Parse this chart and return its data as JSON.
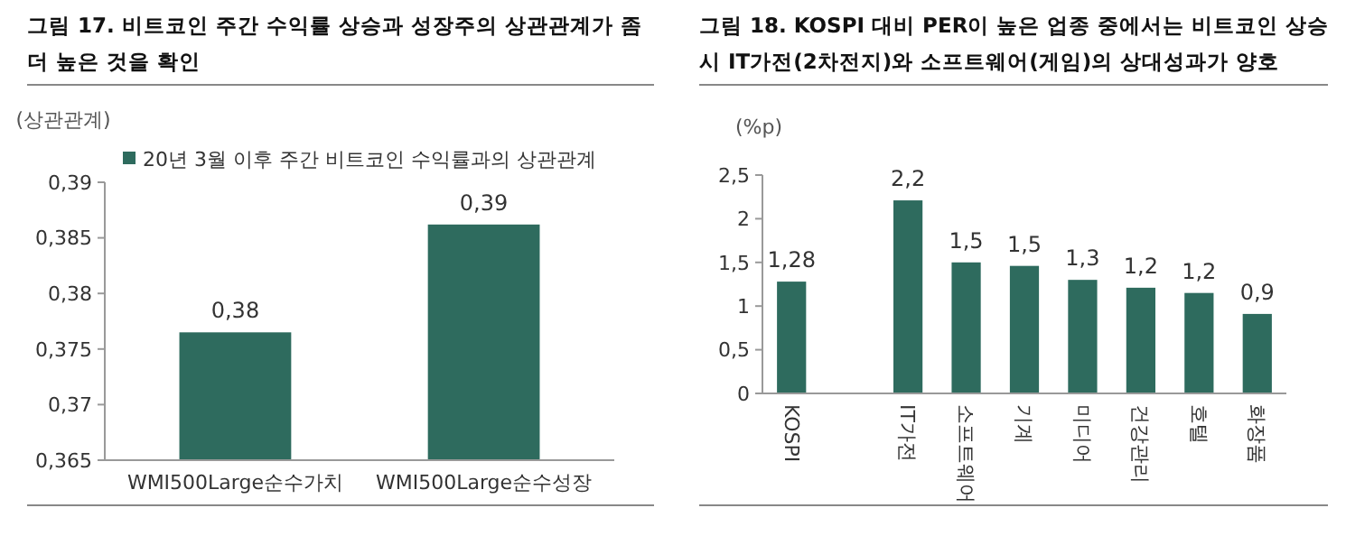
{
  "chart_data": [
    {
      "type": "bar",
      "title": "그림 17. 비트코인 주간 수익률 상승과 성장주의 상관관계가 좀 더 높은 것을 확인",
      "ylabel": "(상관관계)",
      "categories": [
        "WMI500Large순수가치",
        "WMI500Large순수성장"
      ],
      "series": [
        {
          "name": "20년 3월 이후 주간 비트코인 수익률과의 상관관계",
          "color": "#2e6b5e",
          "values": [
            0.3765,
            0.3862
          ],
          "value_labels": [
            "0,38",
            "0,39"
          ]
        }
      ],
      "ylim": [
        0.365,
        0.39
      ],
      "yticks": [
        {
          "value": 0.365,
          "label": "0,365"
        },
        {
          "value": 0.37,
          "label": "0,37"
        },
        {
          "value": 0.375,
          "label": "0,375"
        },
        {
          "value": 0.38,
          "label": "0,38"
        },
        {
          "value": 0.385,
          "label": "0,385"
        },
        {
          "value": 0.39,
          "label": "0,39"
        }
      ],
      "legend": "top",
      "grid": false
    },
    {
      "type": "bar",
      "title": "그림 18. KOSPI 대비 PER이 높은 업종 중에서는 비트코인 상승 시 IT가전(2차전지)와 소프트웨어(게임)의 상대성과가 양호",
      "ylabel": "(%p)",
      "categories": [
        "KOSPI",
        null,
        "IT가전",
        "소프트웨어",
        "기계",
        "미디어",
        "건강관리",
        "호텔",
        "화장품"
      ],
      "series": [
        {
          "color": "#2e6b5e",
          "values": [
            1.28,
            null,
            2.21,
            1.5,
            1.46,
            1.3,
            1.21,
            1.15,
            0.91
          ],
          "value_labels": [
            "1,28",
            null,
            "2,2",
            "1,5",
            "1,5",
            "1,3",
            "1,2",
            "1,2",
            "0,9"
          ]
        }
      ],
      "ylim": [
        0,
        2.5
      ],
      "yticks": [
        0,
        {
          "value": 0.5,
          "label": "0,5"
        },
        1,
        {
          "value": 1.5,
          "label": "1,5"
        },
        2,
        {
          "value": 2.5,
          "label": "2,5"
        }
      ],
      "grid": false
    }
  ]
}
